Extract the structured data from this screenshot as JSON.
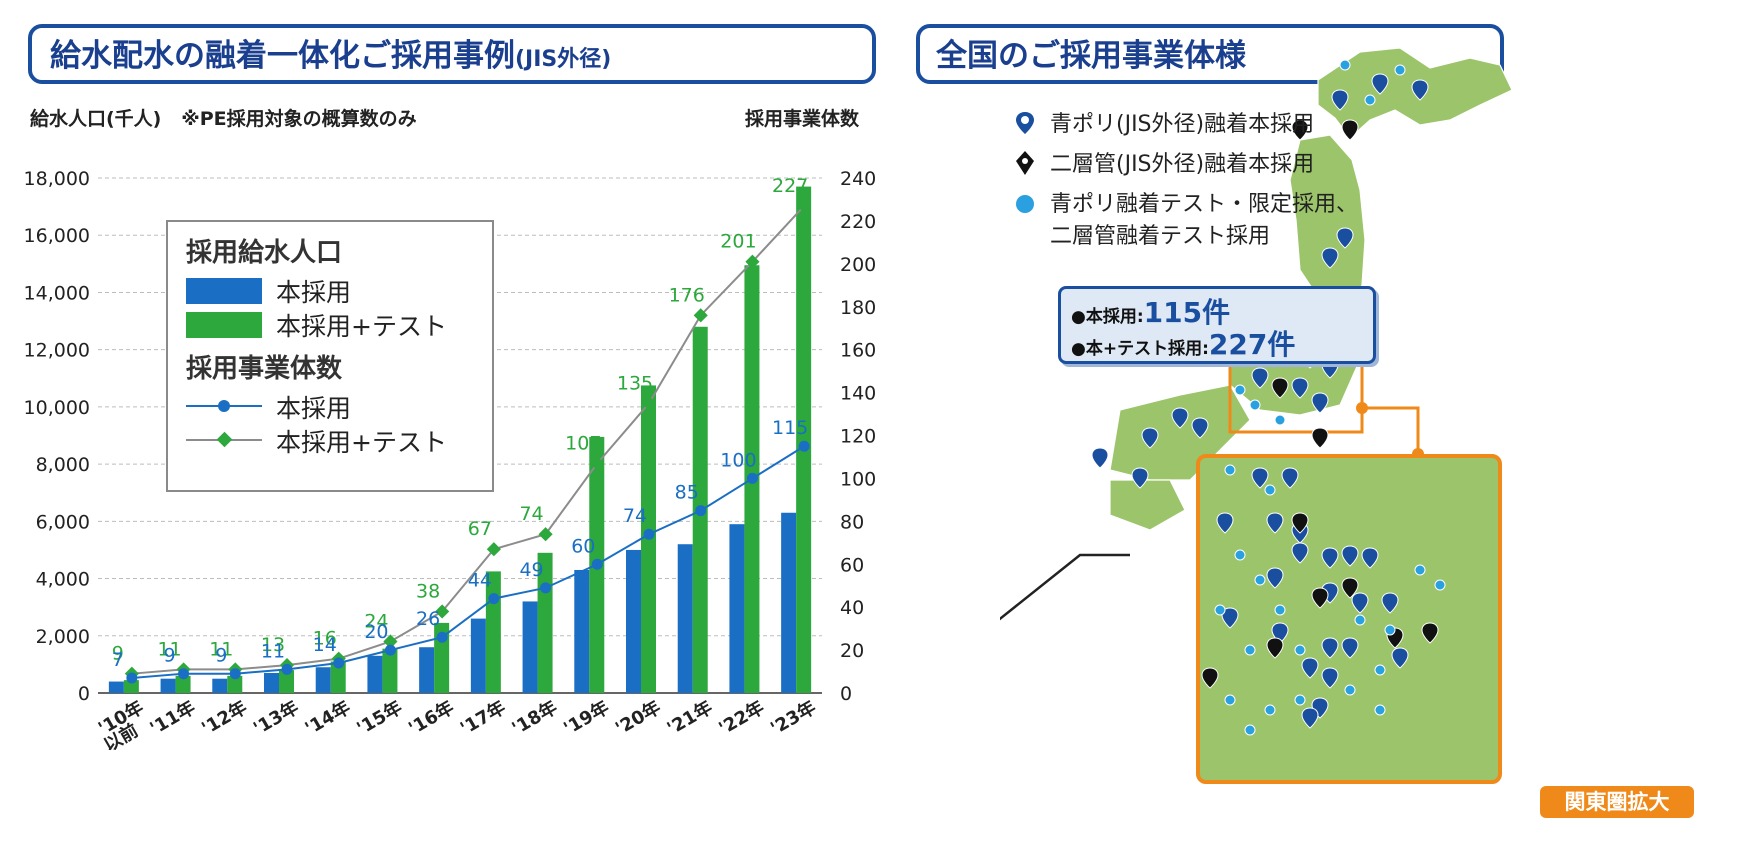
{
  "left_title": {
    "main": "給水配水の融着一体化ご採用事例",
    "suffix": "(JIS外径)"
  },
  "right_title": "全国のご採用事業体様",
  "chart_data": {
    "type": "bar",
    "title": "給水配水の融着一体化ご採用事例(JIS外径)",
    "ylabel": "給水人口(千人)",
    "note": "※PE採用対象の概算数のみ",
    "y2label": "採用事業体数",
    "categories": [
      "'10年以前",
      "'11年",
      "'12年",
      "'13年",
      "'14年",
      "'15年",
      "'16年",
      "'17年",
      "'18年",
      "'19年",
      "'20年",
      "'21年",
      "'22年",
      "'23年"
    ],
    "category_lines": [
      [
        "'10年",
        "以前"
      ],
      [
        "'11年"
      ],
      [
        "'12年"
      ],
      [
        "'13年"
      ],
      [
        "'14年"
      ],
      [
        "'15年"
      ],
      [
        "'16年"
      ],
      [
        "'17年"
      ],
      [
        "'18年"
      ],
      [
        "'19年"
      ],
      [
        "'20年"
      ],
      [
        "'21年"
      ],
      [
        "'22年"
      ],
      [
        "'23年"
      ]
    ],
    "ylim": [
      0,
      18000
    ],
    "y_ticks": [
      0,
      2000,
      4000,
      6000,
      8000,
      10000,
      12000,
      14000,
      16000,
      18000
    ],
    "y_tick_labels": [
      "0",
      "2,000",
      "4,000",
      "6,000",
      "8,000",
      "10,000",
      "12,000",
      "14,000",
      "16,000",
      "18,000"
    ],
    "y2lim": [
      0,
      240
    ],
    "y2_ticks": [
      0,
      20,
      40,
      60,
      80,
      100,
      120,
      140,
      160,
      180,
      200,
      220,
      240
    ],
    "y2_tick_labels": [
      "0",
      "20",
      "40",
      "60",
      "80",
      "100",
      "120",
      "140",
      "160",
      "180",
      "200",
      "220",
      "240"
    ],
    "grid": true,
    "legend_position": "top-left",
    "legend": {
      "bar_header": "採用給水人口",
      "line_header": "採用事業体数"
    },
    "series": [
      {
        "name": "本採用",
        "kind": "bar",
        "axis": "left",
        "color": "#1a6fc4",
        "values": [
          400,
          500,
          500,
          700,
          900,
          1300,
          1600,
          2600,
          3200,
          4300,
          5000,
          5200,
          5900,
          6300
        ]
      },
      {
        "name": "本採用+テスト",
        "kind": "bar",
        "axis": "left",
        "color": "#2ca83c",
        "values": [
          450,
          600,
          600,
          800,
          1100,
          1550,
          2450,
          4250,
          4900,
          8950,
          10750,
          12800,
          14950,
          17700
        ]
      },
      {
        "name": "本採用",
        "kind": "line",
        "axis": "right",
        "color": "#1a6fc4",
        "values": [
          7,
          9,
          9,
          11,
          14,
          20,
          26,
          44,
          49,
          60,
          74,
          85,
          100,
          115
        ],
        "labels": [
          "7",
          "9",
          "9",
          "11",
          "14",
          "20",
          "26",
          "44",
          "49",
          "60",
          "74",
          "85",
          "100",
          "115"
        ]
      },
      {
        "name": "本採用+テスト",
        "kind": "line",
        "axis": "right",
        "color": "#8c8c8c",
        "marker_color": "#2ca83c",
        "values": [
          9,
          11,
          11,
          13,
          16,
          24,
          38,
          67,
          74,
          107,
          135,
          176,
          201,
          227
        ],
        "labels": [
          "9",
          "11",
          "11",
          "13",
          "16",
          "24",
          "38",
          "67",
          "74",
          "107",
          "135",
          "176",
          "201",
          "227"
        ]
      }
    ]
  },
  "map_legend": {
    "item1": "青ポリ(JIS外径)融着本採用",
    "item2": "二層管(JIS外径)融着本採用",
    "item3_line1": "青ポリ融着テスト・限定採用、",
    "item3_line2": "二層管融着テスト採用"
  },
  "counts": {
    "main_label": "●本採用:",
    "main_value": "115件",
    "test_label": "●本+テスト採用:",
    "test_value": "227件"
  },
  "kanto_label": "関東圏拡大",
  "colors": {
    "blue": "#1a6fc4",
    "green": "#2ca83c",
    "navy": "#1a3f8f",
    "orange": "#ef8a1a",
    "land": "#9cc46a",
    "test_dot": "#2aa0e0"
  }
}
